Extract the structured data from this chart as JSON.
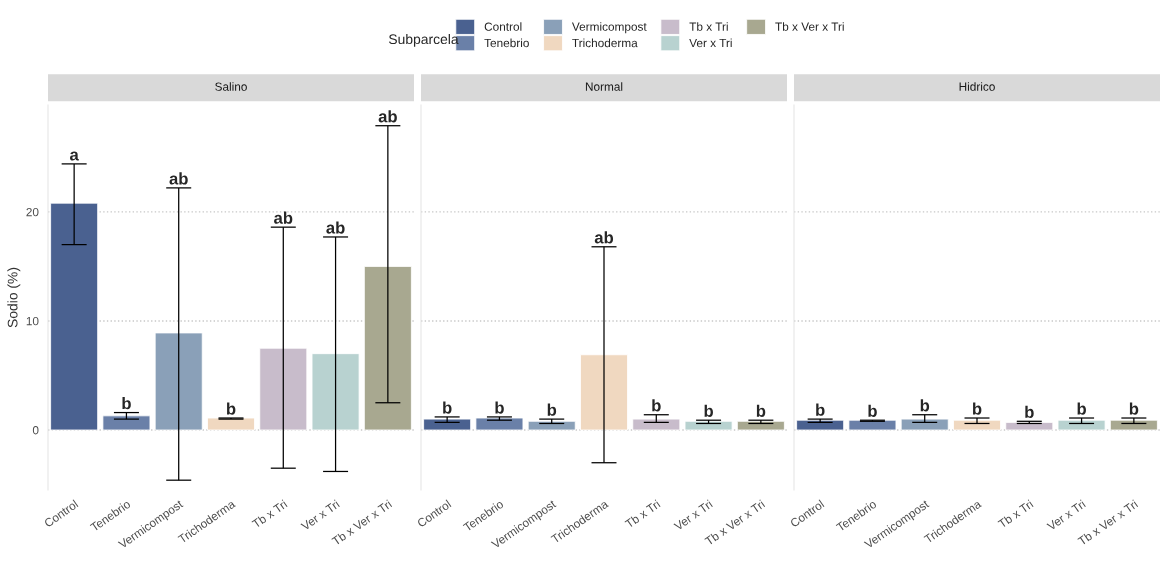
{
  "chart_data": [
    {
      "type": "bar",
      "title": "Salino",
      "ylabel": "Sodio (%)",
      "legend_title": "Subparcela",
      "legend": "top",
      "categories": [
        "Control",
        "Tenebrio",
        "Vermicompost",
        "Trichoderma",
        "Tb x Tri",
        "Ver x Tri",
        "Tb x Ver x Tri"
      ],
      "series": [
        {
          "name": "Control",
          "color": "#4a6190",
          "values": [
            20.8,
            null,
            null,
            null,
            null,
            null,
            null
          ],
          "errors": [
            [
              17.0,
              24.4
            ],
            null,
            null,
            null,
            null,
            null,
            null
          ]
        },
        {
          "name": "Tenebrio",
          "color": "#6a80a8",
          "values": [
            null,
            1.3,
            null,
            null,
            null,
            null,
            null
          ],
          "errors": [
            null,
            [
              1.0,
              1.6
            ],
            null,
            null,
            null,
            null,
            null
          ]
        },
        {
          "name": "Vermicompost",
          "color": "#8aa0b8",
          "values": [
            null,
            null,
            8.9,
            null,
            null,
            null,
            null
          ],
          "errors": [
            null,
            null,
            [
              -4.6,
              22.2
            ],
            null,
            null,
            null,
            null
          ]
        },
        {
          "name": "Trichoderma",
          "color": "#f0d8c0",
          "values": [
            null,
            null,
            null,
            1.1,
            null,
            null,
            null
          ],
          "errors": [
            null,
            null,
            null,
            [
              1.0,
              1.1
            ],
            null,
            null,
            null
          ]
        },
        {
          "name": "Tb x Tri",
          "color": "#c8bccb",
          "values": [
            null,
            null,
            null,
            null,
            7.5,
            null,
            null
          ],
          "errors": [
            null,
            null,
            null,
            null,
            [
              -3.5,
              18.6
            ],
            null,
            null
          ]
        },
        {
          "name": "Ver x Tri",
          "color": "#b8d2d0",
          "values": [
            null,
            null,
            null,
            null,
            null,
            7.0,
            null
          ],
          "errors": [
            null,
            null,
            null,
            null,
            null,
            [
              -3.8,
              17.7
            ],
            null
          ]
        },
        {
          "name": "Tb x Ver x Tri",
          "color": "#a8a890",
          "values": [
            null,
            null,
            null,
            null,
            null,
            null,
            15.0
          ],
          "errors": [
            null,
            null,
            null,
            null,
            null,
            null,
            [
              2.5,
              27.9
            ]
          ]
        }
      ],
      "annotations": [
        "a",
        "b",
        "ab",
        "b",
        "ab",
        "ab",
        "ab"
      ],
      "ylim": [
        -5.5,
        29.8
      ],
      "yticks": [
        0,
        10,
        20
      ],
      "grid": "y"
    },
    {
      "type": "bar",
      "title": "Normal",
      "tick_labels": "x",
      "categories": [
        "Control",
        "Tenebrio",
        "Vermicompost",
        "Trichoderma",
        "Tb x Tri",
        "Ver x Tri",
        "Tb x Ver x Tri"
      ],
      "series": [
        {
          "color": "#4a6190",
          "values": [
            1.0,
            null,
            null,
            null,
            null,
            null,
            null
          ],
          "errors": [
            [
              0.7,
              1.2
            ],
            null,
            null,
            null,
            null,
            null,
            null
          ]
        },
        {
          "color": "#6a80a8",
          "values": [
            null,
            1.1,
            null,
            null,
            null,
            null,
            null
          ],
          "errors": [
            null,
            [
              0.9,
              1.2
            ],
            null,
            null,
            null,
            null,
            null
          ]
        },
        {
          "color": "#8aa0b8",
          "values": [
            null,
            null,
            0.8,
            null,
            null,
            null,
            null
          ],
          "errors": [
            null,
            null,
            [
              0.6,
              1.0
            ],
            null,
            null,
            null,
            null
          ]
        },
        {
          "color": "#f0d8c0",
          "values": [
            null,
            null,
            null,
            6.9,
            null,
            null,
            null
          ],
          "errors": [
            null,
            null,
            null,
            [
              -3.0,
              16.8
            ],
            null,
            null,
            null
          ]
        },
        {
          "color": "#c8bccb",
          "values": [
            null,
            null,
            null,
            null,
            1.0,
            null,
            null
          ],
          "errors": [
            null,
            null,
            null,
            null,
            [
              0.7,
              1.4
            ],
            null,
            null
          ]
        },
        {
          "color": "#b8d2d0",
          "values": [
            null,
            null,
            null,
            null,
            null,
            0.8,
            null
          ],
          "errors": [
            null,
            null,
            null,
            null,
            null,
            [
              0.6,
              0.9
            ],
            null
          ]
        },
        {
          "color": "#a8a890",
          "values": [
            null,
            null,
            null,
            null,
            null,
            null,
            0.8
          ],
          "errors": [
            null,
            null,
            null,
            null,
            null,
            null,
            [
              0.6,
              0.9
            ]
          ]
        }
      ],
      "annotations": [
        "b",
        "b",
        "b",
        "ab",
        "b",
        "b",
        "b"
      ],
      "ylim": [
        -5.5,
        29.8
      ],
      "yticks": [
        0,
        10,
        20
      ],
      "grid": "y"
    },
    {
      "type": "bar",
      "title": "Hidrico",
      "tick_labels": "x",
      "categories": [
        "Control",
        "Tenebrio",
        "Vermicompost",
        "Trichoderma",
        "Tb x Tri",
        "Ver x Tri",
        "Tb x Ver x Tri"
      ],
      "series": [
        {
          "color": "#4a6190",
          "values": [
            0.9,
            null,
            null,
            null,
            null,
            null,
            null
          ],
          "errors": [
            [
              0.7,
              1.0
            ],
            null,
            null,
            null,
            null,
            null,
            null
          ]
        },
        {
          "color": "#6a80a8",
          "values": [
            null,
            0.9,
            null,
            null,
            null,
            null,
            null
          ],
          "errors": [
            null,
            [
              0.8,
              0.9
            ],
            null,
            null,
            null,
            null,
            null
          ]
        },
        {
          "color": "#8aa0b8",
          "values": [
            null,
            null,
            1.0,
            null,
            null,
            null,
            null
          ],
          "errors": [
            null,
            null,
            [
              0.7,
              1.4
            ],
            null,
            null,
            null,
            null
          ]
        },
        {
          "color": "#f0d8c0",
          "values": [
            null,
            null,
            null,
            0.9,
            null,
            null,
            null
          ],
          "errors": [
            null,
            null,
            null,
            [
              0.6,
              1.1
            ],
            null,
            null,
            null
          ]
        },
        {
          "color": "#c8bccb",
          "values": [
            null,
            null,
            null,
            null,
            0.7,
            null,
            null
          ],
          "errors": [
            null,
            null,
            null,
            null,
            [
              0.6,
              0.8
            ],
            null,
            null
          ]
        },
        {
          "color": "#b8d2d0",
          "values": [
            null,
            null,
            null,
            null,
            null,
            0.9,
            null
          ],
          "errors": [
            null,
            null,
            null,
            null,
            null,
            [
              0.6,
              1.1
            ],
            null
          ]
        },
        {
          "color": "#a8a890",
          "values": [
            null,
            null,
            null,
            null,
            null,
            null,
            0.9
          ],
          "errors": [
            null,
            null,
            null,
            null,
            null,
            null,
            [
              0.6,
              1.1
            ]
          ]
        }
      ],
      "annotations": [
        "b",
        "b",
        "b",
        "b",
        "b",
        "b",
        "b"
      ],
      "ylim": [
        -5.5,
        29.8
      ],
      "yticks": [
        0,
        10,
        20
      ],
      "grid": "y"
    }
  ]
}
